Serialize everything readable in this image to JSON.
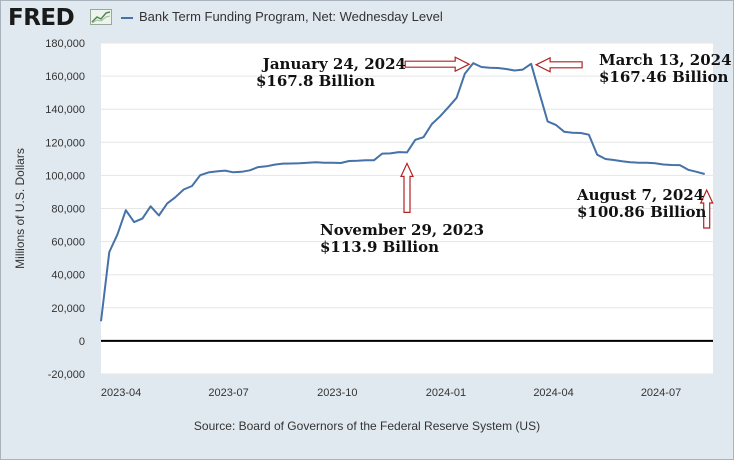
{
  "header": {
    "logo_text": "FRED",
    "legend_label": "Bank Term Funding Program, Net: Wednesday Level"
  },
  "source": "Source: Board of Governors of the Federal Reserve System (US)",
  "colors": {
    "series": "#4572a7",
    "arrow": "#b22222",
    "zero_line": "#000000",
    "panel_bg": "#e1e9f0"
  },
  "chart_data": {
    "type": "line",
    "title": "",
    "xlabel": "",
    "ylabel": "Millions of U.S. Dollars",
    "ylim": [
      -20000,
      180000
    ],
    "xlim": [
      "2023-03-15",
      "2024-08-14"
    ],
    "grid": true,
    "yticks": [
      {
        "value": -20000,
        "label": "-20,000"
      },
      {
        "value": 0,
        "label": "0"
      },
      {
        "value": 20000,
        "label": "20,000"
      },
      {
        "value": 40000,
        "label": "40,000"
      },
      {
        "value": 60000,
        "label": "60,000"
      },
      {
        "value": 80000,
        "label": "80,000"
      },
      {
        "value": 100000,
        "label": "100,000"
      },
      {
        "value": 120000,
        "label": "120,000"
      },
      {
        "value": 140000,
        "label": "140,000"
      },
      {
        "value": 160000,
        "label": "160,000"
      },
      {
        "value": 180000,
        "label": "180,000"
      }
    ],
    "xticks": [
      {
        "date": "2023-04-01",
        "label": "2023-04"
      },
      {
        "date": "2023-07-01",
        "label": "2023-07"
      },
      {
        "date": "2023-10-01",
        "label": "2023-10"
      },
      {
        "date": "2024-01-01",
        "label": "2024-01"
      },
      {
        "date": "2024-04-01",
        "label": "2024-04"
      },
      {
        "date": "2024-07-01",
        "label": "2024-07"
      }
    ],
    "series": [
      {
        "name": "Bank Term Funding Program, Net: Wednesday Level",
        "points": [
          [
            "2023-03-15",
            11900
          ],
          [
            "2023-03-22",
            53700
          ],
          [
            "2023-03-29",
            64400
          ],
          [
            "2023-04-05",
            79000
          ],
          [
            "2023-04-12",
            71800
          ],
          [
            "2023-04-19",
            73900
          ],
          [
            "2023-04-26",
            81300
          ],
          [
            "2023-05-03",
            75800
          ],
          [
            "2023-05-10",
            83100
          ],
          [
            "2023-05-17",
            86800
          ],
          [
            "2023-05-24",
            91500
          ],
          [
            "2023-05-31",
            93600
          ],
          [
            "2023-06-07",
            100100
          ],
          [
            "2023-06-14",
            101800
          ],
          [
            "2023-06-21",
            102400
          ],
          [
            "2023-06-28",
            102900
          ],
          [
            "2023-07-05",
            101900
          ],
          [
            "2023-07-12",
            102200
          ],
          [
            "2023-07-19",
            103100
          ],
          [
            "2023-07-26",
            105000
          ],
          [
            "2023-08-02",
            105500
          ],
          [
            "2023-08-09",
            106500
          ],
          [
            "2023-08-16",
            107100
          ],
          [
            "2023-08-23",
            107200
          ],
          [
            "2023-08-30",
            107300
          ],
          [
            "2023-09-06",
            107700
          ],
          [
            "2023-09-13",
            107900
          ],
          [
            "2023-09-20",
            107600
          ],
          [
            "2023-09-27",
            107700
          ],
          [
            "2023-10-04",
            107500
          ],
          [
            "2023-10-11",
            108700
          ],
          [
            "2023-10-18",
            108800
          ],
          [
            "2023-10-25",
            109100
          ],
          [
            "2023-11-01",
            109100
          ],
          [
            "2023-11-08",
            113200
          ],
          [
            "2023-11-15",
            113300
          ],
          [
            "2023-11-22",
            114100
          ],
          [
            "2023-11-29",
            113900
          ],
          [
            "2023-12-06",
            121500
          ],
          [
            "2023-12-13",
            123100
          ],
          [
            "2023-12-20",
            131000
          ],
          [
            "2023-12-27",
            135700
          ],
          [
            "2024-01-03",
            141200
          ],
          [
            "2024-01-10",
            146900
          ],
          [
            "2024-01-17",
            161500
          ],
          [
            "2024-01-24",
            167800
          ],
          [
            "2024-01-31",
            165500
          ],
          [
            "2024-02-07",
            165100
          ],
          [
            "2024-02-14",
            164900
          ],
          [
            "2024-02-21",
            164300
          ],
          [
            "2024-02-28",
            163400
          ],
          [
            "2024-03-06",
            163900
          ],
          [
            "2024-03-13",
            167460
          ],
          [
            "2024-03-20",
            150000
          ],
          [
            "2024-03-27",
            132600
          ],
          [
            "2024-04-03",
            130500
          ],
          [
            "2024-04-10",
            126400
          ],
          [
            "2024-04-17",
            125800
          ],
          [
            "2024-04-24",
            125600
          ],
          [
            "2024-05-01",
            124600
          ],
          [
            "2024-05-08",
            112500
          ],
          [
            "2024-05-15",
            109900
          ],
          [
            "2024-05-22",
            109300
          ],
          [
            "2024-05-29",
            108500
          ],
          [
            "2024-06-05",
            108000
          ],
          [
            "2024-06-12",
            107700
          ],
          [
            "2024-06-19",
            107700
          ],
          [
            "2024-06-26",
            107400
          ],
          [
            "2024-07-03",
            106600
          ],
          [
            "2024-07-10",
            106300
          ],
          [
            "2024-07-17",
            106200
          ],
          [
            "2024-07-24",
            103400
          ],
          [
            "2024-07-31",
            102200
          ],
          [
            "2024-08-07",
            100860
          ]
        ]
      }
    ],
    "annotations": [
      {
        "date_line": "January 24, 2024",
        "value_line": "$167.8 Billion",
        "arrow": "right",
        "x": "2024-01-24",
        "y": 167800
      },
      {
        "date_line": "March 13, 2024",
        "value_line": "$167.46 Billion",
        "arrow": "left",
        "x": "2024-03-13",
        "y": 167460
      },
      {
        "date_line": "November 29, 2023",
        "value_line": "$113.9 Billion",
        "arrow": "up",
        "x": "2023-11-29",
        "y": 113900
      },
      {
        "date_line": "August 7, 2024",
        "value_line": "$100.86 Billion",
        "arrow": "up",
        "x": "2024-08-07",
        "y": 100860
      }
    ]
  }
}
